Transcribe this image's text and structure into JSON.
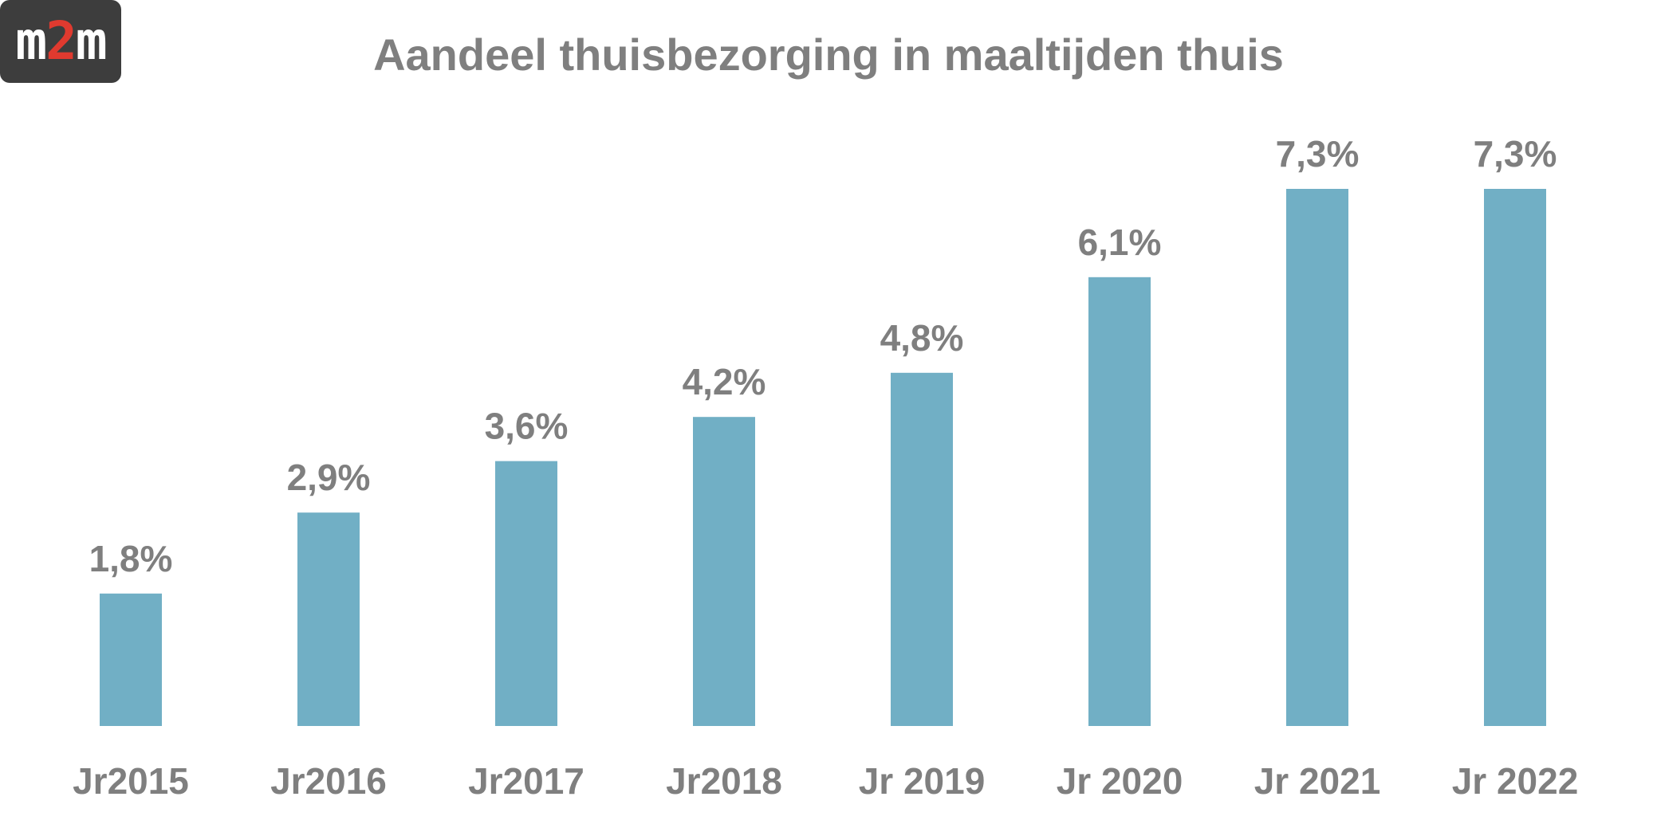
{
  "logo": {
    "part1": "m",
    "part2": "2",
    "part3": "m",
    "accent_color": "#e03a2f",
    "background_color": "#3d3d3d"
  },
  "chart_data": {
    "type": "bar",
    "title": "Aandeel thuisbezorging in maaltijden thuis",
    "xlabel": "",
    "ylabel": "",
    "categories": [
      "Jr2015",
      "Jr2016",
      "Jr2017",
      "Jr2018",
      "Jr 2019",
      "Jr 2020",
      "Jr 2021",
      "Jr 2022"
    ],
    "values": [
      1.8,
      2.9,
      3.6,
      4.2,
      4.8,
      6.1,
      7.3,
      7.3
    ],
    "data_labels": [
      "1,8%",
      "2,9%",
      "3,6%",
      "4,2%",
      "4,8%",
      "6,1%",
      "7,3%",
      "7,3%"
    ],
    "ylim": [
      0,
      7.3
    ],
    "grid": false,
    "legend": "none",
    "bar_color": "#71afc5",
    "text_color": "#7f7f7f"
  }
}
